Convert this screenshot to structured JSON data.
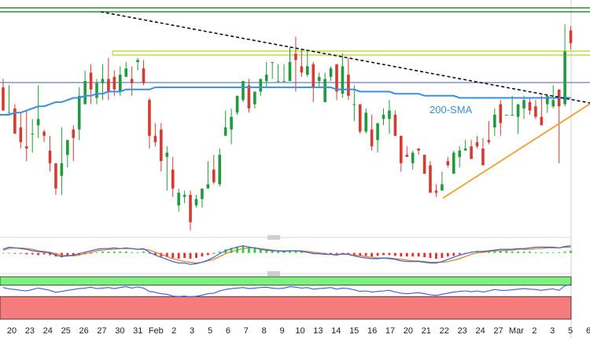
{
  "chart_data": [
    {
      "type": "candlestick",
      "title": "",
      "x_tick_labels": [
        "20",
        "23",
        "24",
        "25",
        "26",
        "27",
        "30",
        "31",
        "Feb",
        "2",
        "3",
        "5",
        "6",
        "7",
        "8",
        "9",
        "10",
        "13",
        "14",
        "15",
        "16",
        "17",
        "20",
        "21",
        "22",
        "23",
        "24",
        "27",
        "Mar",
        "2",
        "3",
        "5",
        "6"
      ],
      "candles": [
        [
          66,
          55,
          70,
          72
        ],
        [
          54,
          54,
          67,
          55
        ],
        [
          56,
          44,
          58,
          49
        ],
        [
          47,
          40,
          54,
          37
        ],
        [
          38,
          37,
          55,
          31
        ],
        [
          44,
          44,
          51,
          35
        ],
        [
          48,
          51,
          67,
          42
        ],
        [
          45,
          43,
          46,
          40
        ],
        [
          36,
          30,
          43,
          26
        ],
        [
          30,
          18,
          21,
          15
        ],
        [
          24,
          30,
          47,
          15
        ],
        [
          34,
          41,
          41,
          28
        ],
        [
          46,
          42,
          48,
          31
        ],
        [
          46,
          62,
          66,
          41
        ],
        [
          58,
          69,
          74,
          62
        ],
        [
          73,
          65,
          77,
          58
        ],
        [
          61,
          68,
          70,
          58
        ],
        [
          68,
          70,
          77,
          60
        ],
        [
          70,
          64,
          80,
          60
        ],
        [
          71,
          65,
          74,
          62
        ],
        [
          64,
          72,
          76,
          62
        ],
        [
          71,
          75,
          78,
          71
        ],
        [
          70,
          68,
          76,
          62
        ],
        [
          78,
          79,
          80,
          74
        ],
        [
          75,
          68,
          79,
          67
        ],
        [
          60,
          43,
          61,
          37
        ],
        [
          43,
          40,
          49,
          38
        ],
        [
          46,
          31,
          49,
          26
        ],
        [
          33,
          35,
          38,
          17
        ],
        [
          27,
          18,
          33,
          14
        ],
        [
          10,
          16,
          18,
          7
        ],
        [
          14,
          15,
          17,
          11
        ],
        [
          15,
          2,
          17,
          -2
        ],
        [
          10,
          13,
          15,
          9
        ],
        [
          13,
          18,
          18,
          9
        ],
        [
          18,
          20,
          31,
          18
        ],
        [
          27,
          21,
          34,
          20
        ],
        [
          20,
          34,
          37,
          19
        ],
        [
          43,
          47,
          55,
          47
        ],
        [
          46,
          52,
          56,
          39
        ],
        [
          54,
          62,
          62,
          53
        ],
        [
          60,
          69,
          69,
          59
        ],
        [
          67,
          56,
          70,
          54
        ],
        [
          58,
          64,
          64,
          56
        ],
        [
          64,
          70,
          70,
          62
        ],
        [
          69,
          72,
          78,
          66
        ],
        [
          78,
          78,
          78,
          70
        ],
        [
          69,
          69,
          77,
          69
        ],
        [
          69,
          69,
          77,
          69
        ],
        [
          69,
          78,
          85,
          69
        ],
        [
          82,
          79,
          90,
          64
        ],
        [
          76,
          73,
          84,
          71
        ],
        [
          72,
          76,
          83,
          71
        ],
        [
          77,
          66,
          78,
          59
        ],
        [
          69,
          71,
          73,
          66
        ],
        [
          59,
          70,
          73,
          63
        ],
        [
          71,
          75,
          76,
          69
        ],
        [
          77,
          64,
          77,
          60
        ],
        [
          63,
          76,
          82,
          61
        ],
        [
          72,
          62,
          80,
          60
        ],
        [
          58,
          58,
          67,
          50
        ],
        [
          58,
          45,
          58,
          44
        ],
        [
          45,
          54,
          56,
          44
        ],
        [
          46,
          38,
          53,
          36
        ],
        [
          41,
          49,
          49,
          35
        ],
        [
          51,
          53,
          56,
          48
        ],
        [
          51,
          55,
          60,
          44
        ],
        [
          53,
          43,
          55,
          44
        ],
        [
          43,
          30,
          43,
          26
        ],
        [
          34,
          33,
          38,
          33
        ],
        [
          30,
          35,
          36,
          27
        ],
        [
          37,
          36,
          36,
          34
        ],
        [
          34,
          25,
          34,
          26
        ],
        [
          29,
          16,
          31,
          16
        ],
        [
          17,
          16,
          20,
          14
        ],
        [
          17,
          20,
          26,
          18
        ],
        [
          31,
          29,
          33,
          28
        ],
        [
          25,
          35,
          36,
          25
        ],
        [
          33,
          36,
          38,
          28
        ],
        [
          36,
          37,
          41,
          36
        ],
        [
          38,
          32,
          41,
          32
        ],
        [
          40,
          38,
          43,
          37
        ],
        [
          37,
          29,
          42,
          29
        ],
        [
          41,
          40,
          50,
          39
        ],
        [
          47,
          53,
          56,
          43
        ],
        [
          58,
          49,
          60,
          43
        ],
        [
          53,
          53,
          53,
          53
        ],
        [
          53,
          53,
          62,
          53
        ],
        [
          52,
          58,
          58,
          44
        ],
        [
          56,
          60,
          62,
          51
        ],
        [
          59,
          55,
          61,
          53
        ],
        [
          57,
          52,
          60,
          51
        ],
        [
          52,
          48,
          62,
          53
        ],
        [
          58,
          62,
          62,
          54
        ],
        [
          57,
          60,
          67,
          56
        ],
        [
          65,
          57,
          64,
          30
        ],
        [
          58,
          83,
          96,
          57
        ],
        [
          93,
          87,
          95,
          84
        ]
      ],
      "price_range": [
        0,
        100
      ],
      "sma_200": [
        53,
        53,
        54,
        54,
        55,
        56,
        57,
        57,
        58,
        59,
        59,
        60,
        61,
        61,
        62,
        62,
        63,
        63,
        64,
        64,
        64,
        65,
        65,
        65,
        65,
        65,
        66,
        66,
        66,
        66,
        66,
        66,
        66,
        66,
        66,
        66,
        66,
        66,
        66,
        66,
        66,
        66,
        66,
        66,
        66,
        66,
        66,
        66,
        66,
        66,
        66,
        66,
        66,
        66,
        66,
        66,
        66,
        65,
        65,
        65,
        65,
        64,
        64,
        64,
        64,
        64,
        64,
        63,
        63,
        63,
        63,
        63,
        62,
        62,
        62,
        62,
        62,
        62,
        61,
        61,
        61,
        61,
        61,
        61,
        61,
        61,
        61,
        61,
        61,
        61,
        61,
        61,
        61,
        61,
        61,
        61,
        61,
        61
      ],
      "annotations": [
        {
          "type": "label",
          "text": "200-SMA"
        }
      ],
      "grid": false
    },
    {
      "type": "histogram",
      "title": "",
      "macd_histogram": [
        0,
        0,
        -0.1,
        -0.1,
        -0.2,
        -0.2,
        -0.3,
        -0.2,
        -0.3,
        -0.5,
        -0.6,
        -0.5,
        -0.4,
        -0.3,
        -0.2,
        -0.1,
        0.1,
        0.2,
        0.2,
        0.2,
        0.2,
        0.2,
        0.1,
        0.1,
        0.2,
        -0.1,
        -0.3,
        -0.5,
        -0.6,
        -0.7,
        -0.8,
        -0.7,
        -0.8,
        -0.7,
        -0.5,
        -0.3,
        -0.1,
        0.2,
        0.5,
        0.7,
        0.9,
        1.0,
        0.9,
        0.8,
        0.6,
        0.5,
        0.4,
        0.3,
        0.2,
        0.3,
        0.3,
        0.2,
        0.1,
        -0.1,
        -0.1,
        -0.2,
        -0.2,
        -0.3,
        -0.1,
        -0.2,
        -0.3,
        -0.4,
        -0.4,
        -0.5,
        -0.4,
        -0.3,
        -0.3,
        -0.4,
        -0.5,
        -0.5,
        -0.5,
        -0.5,
        -0.6,
        -0.7,
        -0.8,
        -0.7,
        -0.5,
        -0.4,
        -0.2,
        -0.1,
        0.1,
        0.2,
        0.2,
        0.3,
        0.3,
        0.3,
        0.3,
        0.2,
        0.2,
        0.2,
        0.2,
        0.1,
        0.1,
        0.1,
        0.1,
        0.1,
        0.2,
        0.3
      ],
      "macd_line": [
        0.5,
        0.8,
        0.7,
        0.6,
        0.5,
        0.3,
        0.2,
        0.1,
        0.0,
        -0.3,
        -0.5,
        -0.4,
        -0.3,
        -0.1,
        0.1,
        0.3,
        0.5,
        0.6,
        0.6,
        0.7,
        0.6,
        0.7,
        0.6,
        0.5,
        0.6,
        0.1,
        -0.3,
        -0.6,
        -0.9,
        -1.2,
        -1.4,
        -1.4,
        -1.6,
        -1.5,
        -1.3,
        -1.0,
        -0.6,
        -0.1,
        0.3,
        0.6,
        0.8,
        1.0,
        0.8,
        0.7,
        0.5,
        0.4,
        0.3,
        0.3,
        0.2,
        0.3,
        0.3,
        0.2,
        0.1,
        -0.1,
        -0.1,
        -0.2,
        -0.2,
        -0.3,
        -0.1,
        -0.2,
        -0.4,
        -0.6,
        -0.7,
        -0.8,
        -0.8,
        -0.7,
        -0.8,
        -0.9,
        -1.1,
        -1.2,
        -1.2,
        -1.2,
        -1.3,
        -1.4,
        -1.4,
        -1.2,
        -0.9,
        -0.6,
        -0.3,
        -0.1,
        0.1,
        0.2,
        0.2,
        0.3,
        0.4,
        0.5,
        0.5,
        0.5,
        0.6,
        0.6,
        0.7,
        0.8,
        0.8,
        0.8,
        0.8,
        0.7,
        0.9,
        1.0
      ],
      "signal_line": [
        0.4,
        0.6,
        0.7,
        0.7,
        0.6,
        0.5,
        0.3,
        0.2,
        0.1,
        -0.1,
        -0.3,
        -0.4,
        -0.4,
        -0.3,
        -0.1,
        0.1,
        0.3,
        0.4,
        0.5,
        0.5,
        0.6,
        0.6,
        0.6,
        0.5,
        0.5,
        0.4,
        0.1,
        -0.2,
        -0.5,
        -0.8,
        -1.0,
        -1.2,
        -1.3,
        -1.4,
        -1.3,
        -1.1,
        -0.9,
        -0.5,
        -0.1,
        0.2,
        0.4,
        0.6,
        0.7,
        0.7,
        0.6,
        0.5,
        0.4,
        0.3,
        0.3,
        0.3,
        0.3,
        0.3,
        0.2,
        0.1,
        0.0,
        -0.1,
        -0.2,
        -0.2,
        -0.2,
        -0.2,
        -0.3,
        -0.4,
        -0.5,
        -0.6,
        -0.7,
        -0.7,
        -0.7,
        -0.8,
        -0.9,
        -1.0,
        -1.1,
        -1.1,
        -1.2,
        -1.3,
        -1.3,
        -1.3,
        -1.2,
        -1.0,
        -0.8,
        -0.5,
        -0.2,
        0.0,
        0.1,
        0.2,
        0.3,
        0.3,
        0.4,
        0.4,
        0.5,
        0.5,
        0.5,
        0.6,
        0.6,
        0.7,
        0.7,
        0.7,
        0.8,
        0.8
      ],
      "range": [
        -2,
        1.5
      ]
    },
    {
      "type": "line",
      "title": "",
      "rsi": [
        62,
        57,
        55,
        52,
        50,
        55,
        60,
        56,
        52,
        45,
        48,
        52,
        55,
        58,
        60,
        63,
        58,
        60,
        62,
        58,
        62,
        65,
        60,
        64,
        60,
        48,
        45,
        40,
        38,
        32,
        30,
        32,
        29,
        31,
        35,
        40,
        42,
        50,
        55,
        58,
        60,
        62,
        58,
        60,
        62,
        63,
        60,
        58,
        60,
        65,
        63,
        60,
        62,
        56,
        58,
        60,
        62,
        56,
        60,
        58,
        54,
        48,
        50,
        46,
        48,
        50,
        52,
        46,
        42,
        40,
        42,
        44,
        40,
        36,
        34,
        38,
        42,
        46,
        48,
        50,
        47,
        50,
        46,
        50,
        55,
        52,
        52,
        54,
        56,
        58,
        56,
        55,
        52,
        55,
        57,
        52,
        68,
        72
      ],
      "overbought_band": [
        70,
        100
      ],
      "oversold_band": [
        0,
        30
      ],
      "range": [
        0,
        100
      ]
    }
  ],
  "sma_label": "200-SMA",
  "colors": {
    "bull": "#1f9a3c",
    "bear": "#d63b31",
    "sma": "#3b8fe0",
    "trend_down": "#111111",
    "trend_up": "#f0a030",
    "resistance_green": "#2e8b3a",
    "resistance_lime": "#b8e23a",
    "horizontal_blue": "#46619a",
    "macd_line": "#3a64c8",
    "signal_line": "#e07a30",
    "hist_pos": "#2ecf3b",
    "hist_neg": "#e03030",
    "rsi_line": "#3a5bd8",
    "overbought_fill": "#7ef07e",
    "oversold_fill": "#f47c7c",
    "axis_text": "#222222"
  }
}
